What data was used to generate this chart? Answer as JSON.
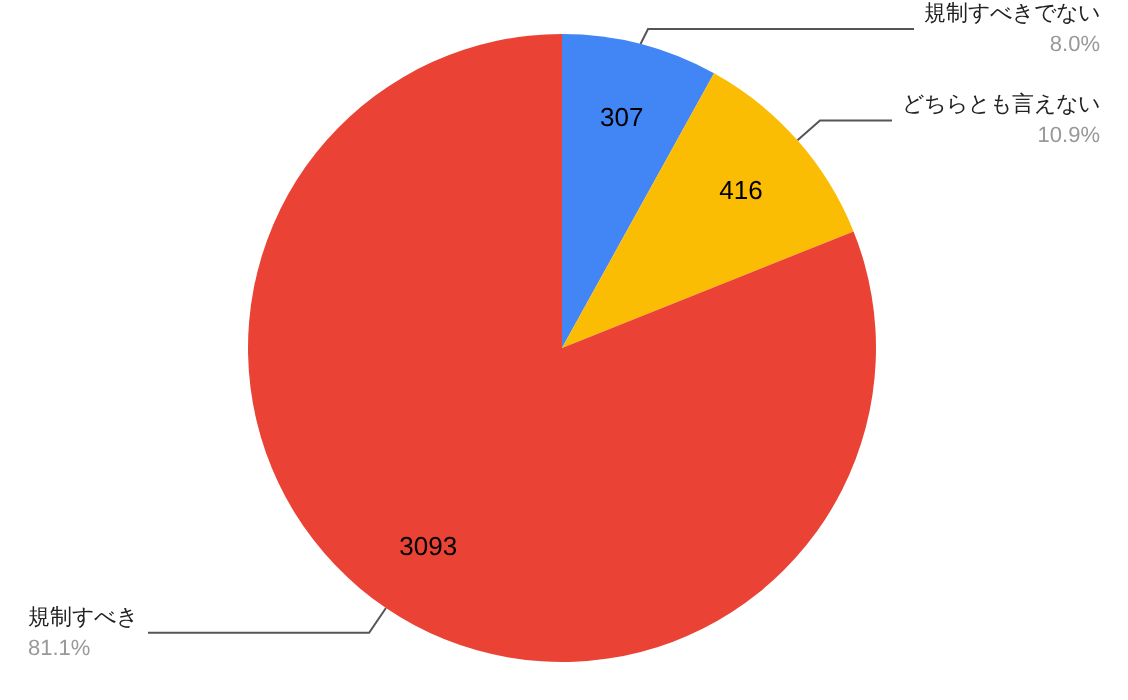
{
  "chart_data": {
    "type": "pie",
    "categories": [
      "規制すべきでない",
      "どちらとも言えない",
      "規制すべき"
    ],
    "values": [
      307,
      416,
      3093
    ],
    "colors": [
      "#4285f4",
      "#fbbc04",
      "#ea4335"
    ],
    "value_labels": [
      "307",
      "416",
      "3093"
    ],
    "annotations": [
      "8.0%",
      "10.9%",
      "81.1%"
    ]
  }
}
